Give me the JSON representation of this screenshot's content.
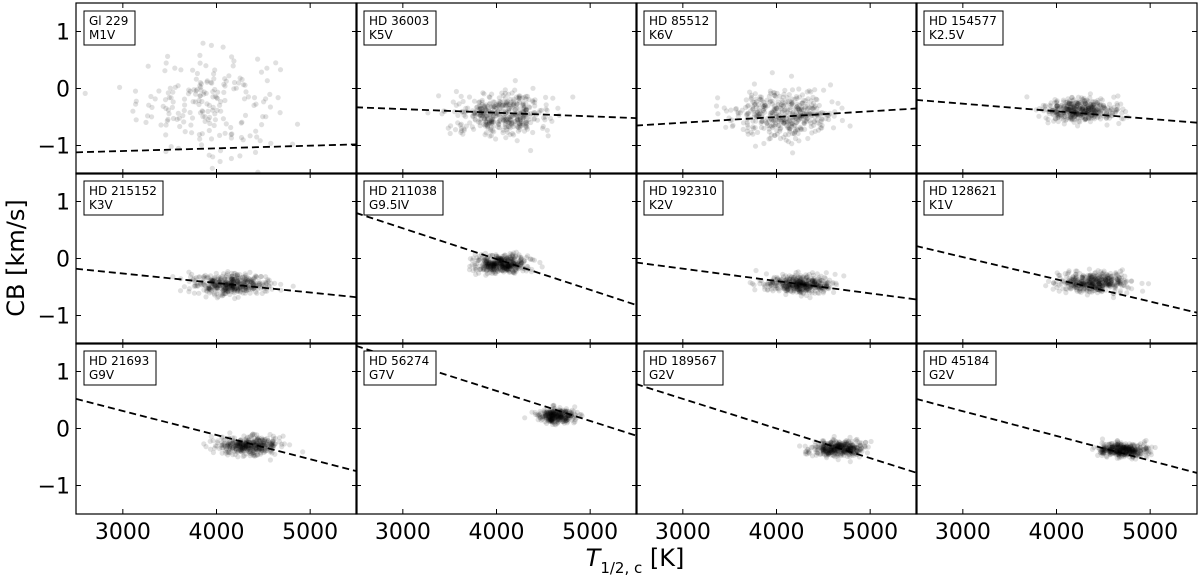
{
  "chart_data": {
    "type": "scatter",
    "layout": "3x4 grid, shared axes",
    "xlabel": "T_{1/2, c} [K]",
    "ylabel": "CB [km/s]",
    "xlim": [
      2500,
      5500
    ],
    "ylim": [
      -1.5,
      1.5
    ],
    "xticks": [
      3000,
      4000,
      5000
    ],
    "yticks": [
      -1,
      0,
      1
    ],
    "xtick_labels": [
      "3000",
      "4000",
      "5000"
    ],
    "ytick_labels": [
      "−1",
      "0",
      "1"
    ],
    "grid": false,
    "marker_color": "#000000",
    "line_color": "#000000",
    "panels": [
      {
        "star": "Gl 229",
        "spectral_type": "M1V",
        "fit": {
          "x": [
            2500,
            5500
          ],
          "y": [
            -1.12,
            -0.98
          ]
        },
        "cloud": {
          "x_center": 3900,
          "x_spread": 620,
          "y_center": -0.25,
          "y_spread": 0.75,
          "n": 200
        }
      },
      {
        "star": "HD 36003",
        "spectral_type": "K5V",
        "fit": {
          "x": [
            2500,
            5500
          ],
          "y": [
            -0.33,
            -0.52
          ]
        },
        "cloud": {
          "x_center": 4050,
          "x_spread": 420,
          "y_center": -0.45,
          "y_spread": 0.3,
          "n": 420
        }
      },
      {
        "star": "HD 85512",
        "spectral_type": "K6V",
        "fit": {
          "x": [
            2500,
            5500
          ],
          "y": [
            -0.65,
            -0.35
          ]
        },
        "cloud": {
          "x_center": 4100,
          "x_spread": 450,
          "y_center": -0.45,
          "y_spread": 0.35,
          "n": 420
        }
      },
      {
        "star": "HD 154577",
        "spectral_type": "K2.5V",
        "fit": {
          "x": [
            2500,
            5500
          ],
          "y": [
            -0.2,
            -0.6
          ]
        },
        "cloud": {
          "x_center": 4250,
          "x_spread": 330,
          "y_center": -0.38,
          "y_spread": 0.18,
          "n": 420
        }
      },
      {
        "star": "HD 215152",
        "spectral_type": "K3V",
        "fit": {
          "x": [
            2500,
            5500
          ],
          "y": [
            -0.18,
            -0.68
          ]
        },
        "cloud": {
          "x_center": 4150,
          "x_spread": 330,
          "y_center": -0.45,
          "y_spread": 0.15,
          "n": 420
        }
      },
      {
        "star": "HD 211038",
        "spectral_type": "G9.5IV",
        "fit": {
          "x": [
            2500,
            5500
          ],
          "y": [
            0.8,
            -0.82
          ]
        },
        "cloud": {
          "x_center": 4050,
          "x_spread": 230,
          "y_center": -0.1,
          "y_spread": 0.14,
          "n": 420
        }
      },
      {
        "star": "HD 192310",
        "spectral_type": "K2V",
        "fit": {
          "x": [
            2500,
            5500
          ],
          "y": [
            -0.07,
            -0.72
          ]
        },
        "cloud": {
          "x_center": 4250,
          "x_spread": 300,
          "y_center": -0.45,
          "y_spread": 0.13,
          "n": 420
        }
      },
      {
        "star": "HD 128621",
        "spectral_type": "K1V",
        "fit": {
          "x": [
            2500,
            5500
          ],
          "y": [
            0.22,
            -0.95
          ]
        },
        "cloud": {
          "x_center": 4400,
          "x_spread": 320,
          "y_center": -0.42,
          "y_spread": 0.15,
          "n": 420
        }
      },
      {
        "star": "HD 21693",
        "spectral_type": "G9V",
        "fit": {
          "x": [
            2500,
            5500
          ],
          "y": [
            0.52,
            -0.75
          ]
        },
        "cloud": {
          "x_center": 4350,
          "x_spread": 280,
          "y_center": -0.3,
          "y_spread": 0.13,
          "n": 380
        }
      },
      {
        "star": "HD 56274",
        "spectral_type": "G7V",
        "fit": {
          "x": [
            2500,
            5500
          ],
          "y": [
            1.45,
            -0.13
          ]
        },
        "cloud": {
          "x_center": 4650,
          "x_spread": 160,
          "y_center": 0.22,
          "y_spread": 0.1,
          "n": 300
        }
      },
      {
        "star": "HD 189567",
        "spectral_type": "G2V",
        "fit": {
          "x": [
            2500,
            5500
          ],
          "y": [
            0.78,
            -0.78
          ]
        },
        "cloud": {
          "x_center": 4650,
          "x_spread": 230,
          "y_center": -0.35,
          "y_spread": 0.12,
          "n": 380
        }
      },
      {
        "star": "HD 45184",
        "spectral_type": "G2V",
        "fit": {
          "x": [
            2500,
            5500
          ],
          "y": [
            0.52,
            -0.78
          ]
        },
        "cloud": {
          "x_center": 4700,
          "x_spread": 220,
          "y_center": -0.38,
          "y_spread": 0.11,
          "n": 380
        }
      }
    ]
  }
}
